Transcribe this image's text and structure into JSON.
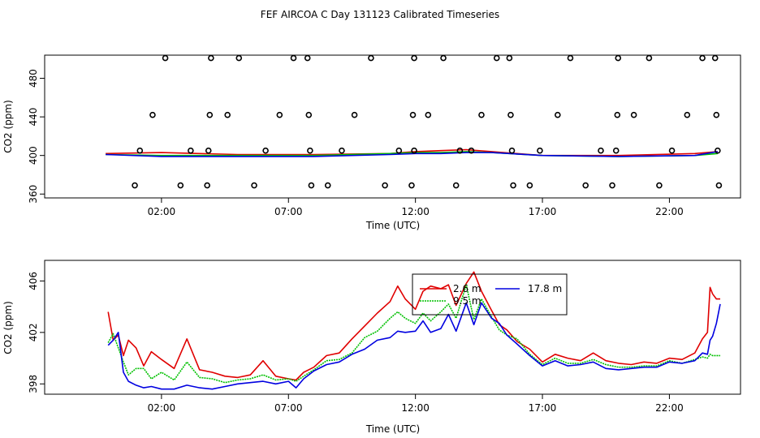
{
  "page_title": "FEF AIRCOA C  Day 131123  Calibrated Timeseries",
  "colors": {
    "red": "#e00000",
    "green": "#00c000",
    "blue": "#0000e0",
    "axis": "#000000"
  },
  "chart_data": [
    {
      "type": "scatter",
      "xlabel": "Time (UTC)",
      "ylabel": "CO2 (ppm)",
      "x_ticks": [
        2,
        7,
        12,
        17,
        22
      ],
      "x_tick_labels": [
        "02:00",
        "07:00",
        "12:00",
        "17:00",
        "22:00"
      ],
      "y_ticks": [
        360,
        400,
        440,
        480
      ],
      "y_tick_labels": [
        "360",
        "400",
        "440",
        "480"
      ],
      "xlim": [
        -2.6,
        24.8
      ],
      "ylim": [
        356,
        504
      ],
      "circles": [
        [
          0.95,
          369
        ],
        [
          1.15,
          405
        ],
        [
          1.65,
          442
        ],
        [
          2.15,
          501
        ],
        [
          2.75,
          369
        ],
        [
          3.15,
          405
        ],
        [
          3.8,
          369
        ],
        [
          3.85,
          405
        ],
        [
          3.9,
          442
        ],
        [
          3.95,
          501
        ],
        [
          4.6,
          442
        ],
        [
          5.05,
          501
        ],
        [
          5.65,
          369
        ],
        [
          6.1,
          405
        ],
        [
          6.65,
          442
        ],
        [
          7.2,
          501
        ],
        [
          7.75,
          501
        ],
        [
          7.8,
          442
        ],
        [
          7.85,
          405
        ],
        [
          7.9,
          369
        ],
        [
          8.55,
          369
        ],
        [
          9.1,
          405
        ],
        [
          9.6,
          442
        ],
        [
          10.25,
          501
        ],
        [
          10.8,
          369
        ],
        [
          11.35,
          405
        ],
        [
          11.85,
          369
        ],
        [
          11.95,
          405
        ],
        [
          11.9,
          442
        ],
        [
          11.95,
          501
        ],
        [
          12.5,
          442
        ],
        [
          13.1,
          501
        ],
        [
          13.6,
          369
        ],
        [
          13.75,
          405
        ],
        [
          14.2,
          405
        ],
        [
          14.6,
          442
        ],
        [
          15.2,
          501
        ],
        [
          15.7,
          501
        ],
        [
          15.75,
          442
        ],
        [
          15.8,
          405
        ],
        [
          15.85,
          369
        ],
        [
          16.5,
          369
        ],
        [
          16.9,
          405
        ],
        [
          17.6,
          442
        ],
        [
          18.1,
          501
        ],
        [
          18.7,
          369
        ],
        [
          19.3,
          405
        ],
        [
          19.75,
          369
        ],
        [
          19.9,
          405
        ],
        [
          19.95,
          442
        ],
        [
          19.98,
          501
        ],
        [
          20.6,
          442
        ],
        [
          21.2,
          501
        ],
        [
          21.6,
          369
        ],
        [
          22.1,
          405
        ],
        [
          22.7,
          442
        ],
        [
          23.3,
          501
        ],
        [
          23.8,
          501
        ],
        [
          23.85,
          442
        ],
        [
          23.9,
          405
        ],
        [
          23.95,
          369
        ]
      ],
      "series": [
        {
          "name": "2.6 m",
          "color": "#e00000",
          "x": [
            -0.2,
            2,
            5,
            8,
            11,
            12,
            13,
            14,
            15,
            17,
            20,
            23,
            23.9
          ],
          "y": [
            402,
            403,
            401,
            401,
            402,
            404,
            405,
            406,
            404,
            400,
            400,
            402,
            404
          ]
        },
        {
          "name": "9.5 m",
          "color": "#00c000",
          "x": [
            -0.2,
            2,
            5,
            8,
            11,
            12,
            13,
            14,
            15,
            17,
            20,
            23,
            23.9
          ],
          "y": [
            401,
            400,
            400,
            400,
            402,
            403,
            403,
            404,
            403,
            400,
            399,
            400,
            402
          ]
        },
        {
          "name": "17.8 m",
          "color": "#0000e0",
          "x": [
            -0.2,
            2,
            5,
            8,
            11,
            12,
            13,
            14,
            15,
            17,
            20,
            23,
            23.9
          ],
          "y": [
            401,
            399,
            399,
            399,
            401,
            402,
            402,
            403,
            403,
            400,
            399,
            400,
            404
          ]
        }
      ]
    },
    {
      "type": "line",
      "xlabel": "Time (UTC)",
      "ylabel": "CO2 (ppm)",
      "x_ticks": [
        2,
        7,
        12,
        17,
        22
      ],
      "x_tick_labels": [
        "02:00",
        "07:00",
        "12:00",
        "17:00",
        "22:00"
      ],
      "y_ticks": [
        398,
        402,
        406
      ],
      "y_tick_labels": [
        "398",
        "402",
        "406"
      ],
      "xlim": [
        -2.6,
        24.8
      ],
      "ylim": [
        397.2,
        407.6
      ],
      "legend": {
        "placement": "top-center",
        "entries": [
          "2.6 m",
          "9.5 m",
          "17.8 m"
        ]
      },
      "x": [
        -0.1,
        0.1,
        0.3,
        0.5,
        0.7,
        1.0,
        1.3,
        1.6,
        2.0,
        2.5,
        3.0,
        3.5,
        4.0,
        4.5,
        5.0,
        5.5,
        6.0,
        6.5,
        7.0,
        7.3,
        7.6,
        8.0,
        8.5,
        9.0,
        9.5,
        10.0,
        10.5,
        11.0,
        11.3,
        11.6,
        12.0,
        12.3,
        12.6,
        13.0,
        13.3,
        13.6,
        14.0,
        14.3,
        14.6,
        15.0,
        15.3,
        15.6,
        16.0,
        16.5,
        17.0,
        17.5,
        18.0,
        18.5,
        19.0,
        19.5,
        20.0,
        20.5,
        21.0,
        21.5,
        22.0,
        22.5,
        23.0,
        23.3,
        23.5,
        23.6,
        23.7,
        23.85,
        24.0
      ],
      "series": [
        {
          "name": "2.6 m",
          "color": "#e00000",
          "y": [
            403.6,
            401.4,
            401.8,
            400.2,
            401.4,
            400.8,
            399.4,
            400.5,
            399.9,
            399.2,
            401.5,
            399.1,
            398.9,
            398.6,
            398.5,
            398.7,
            399.8,
            398.6,
            398.4,
            398.3,
            398.9,
            399.3,
            400.2,
            400.4,
            401.5,
            402.5,
            403.5,
            404.4,
            405.6,
            404.6,
            403.8,
            405.2,
            405.6,
            405.4,
            405.7,
            404.1,
            405.8,
            406.7,
            405.2,
            403.7,
            402.6,
            402.2,
            401.3,
            400.7,
            399.7,
            400.3,
            400.0,
            399.8,
            400.4,
            399.8,
            399.6,
            399.5,
            399.7,
            399.6,
            400.0,
            399.9,
            400.4,
            401.5,
            402.0,
            405.5,
            405.0,
            404.6,
            404.6
          ]
        },
        {
          "name": "9.5 m",
          "color": "#00c000",
          "y": [
            401.2,
            401.9,
            400.8,
            399.7,
            398.7,
            399.2,
            399.2,
            398.4,
            398.9,
            398.3,
            399.7,
            398.5,
            398.4,
            398.1,
            398.3,
            398.4,
            398.7,
            398.3,
            398.4,
            398.2,
            398.6,
            399.1,
            399.8,
            399.9,
            400.4,
            401.6,
            402.1,
            403.1,
            403.6,
            403.1,
            402.7,
            403.5,
            402.9,
            403.6,
            404.2,
            403.1,
            405.7,
            403.0,
            404.6,
            403.2,
            402.2,
            401.8,
            401.5,
            400.3,
            399.5,
            400.0,
            399.6,
            399.6,
            399.9,
            399.5,
            399.3,
            399.3,
            399.4,
            399.4,
            399.8,
            399.6,
            399.9,
            400.1,
            400.0,
            400.3,
            400.2,
            400.2,
            400.2
          ]
        },
        {
          "name": "17.8 m",
          "color": "#0000e0",
          "y": [
            401.0,
            401.4,
            402.0,
            398.9,
            398.2,
            397.9,
            397.7,
            397.8,
            397.6,
            397.6,
            397.9,
            397.7,
            397.6,
            397.8,
            398.0,
            398.1,
            398.2,
            398.0,
            398.2,
            397.7,
            398.4,
            399.0,
            399.5,
            399.7,
            400.3,
            400.7,
            401.4,
            401.6,
            402.1,
            402.0,
            402.1,
            402.9,
            402.0,
            402.3,
            403.4,
            402.1,
            404.3,
            402.6,
            404.3,
            403.1,
            402.7,
            401.8,
            401.1,
            400.2,
            399.4,
            399.8,
            399.4,
            399.5,
            399.7,
            399.2,
            399.1,
            399.2,
            399.3,
            399.3,
            399.7,
            399.6,
            399.8,
            400.4,
            400.3,
            401.4,
            401.7,
            402.7,
            404.2
          ]
        }
      ]
    }
  ]
}
